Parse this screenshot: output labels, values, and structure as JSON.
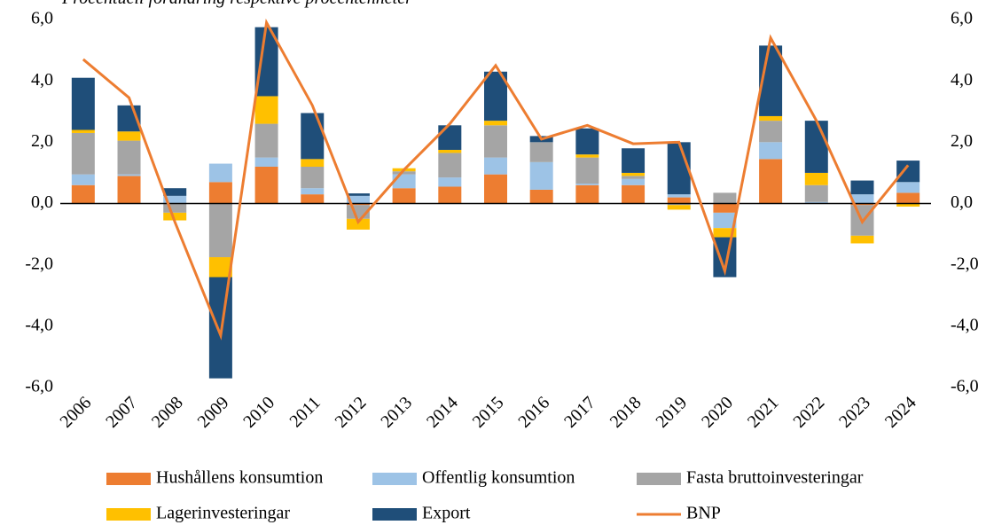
{
  "chart_data": {
    "type": "bar",
    "title": "Procentuell förändring respektive procentenheter",
    "categories": [
      "2006",
      "2007",
      "2008",
      "2009",
      "2010",
      "2011",
      "2012",
      "2013",
      "2014",
      "2015",
      "2016",
      "2017",
      "2018",
      "2019",
      "2020",
      "2021",
      "2022",
      "2023",
      "2024"
    ],
    "stacked": true,
    "series": [
      {
        "name": "Hushållens konsumtion",
        "color": "#ed7d31",
        "values": [
          0.6,
          0.9,
          0.0,
          0.7,
          1.2,
          0.3,
          -0.05,
          0.5,
          0.55,
          0.95,
          0.45,
          0.6,
          0.6,
          0.2,
          -0.3,
          1.45,
          0.0,
          -0.05,
          0.35
        ]
      },
      {
        "name": "Offentlig konsumtion",
        "color": "#9dc3e6",
        "values": [
          0.35,
          0.05,
          0.25,
          0.6,
          0.3,
          0.2,
          0.25,
          0.45,
          0.3,
          0.55,
          0.9,
          0.05,
          0.2,
          0.1,
          -0.5,
          0.55,
          0.05,
          0.3,
          0.35
        ]
      },
      {
        "name": "Fasta bruttoinvesteringar",
        "color": "#a5a5a5",
        "values": [
          1.35,
          1.1,
          -0.3,
          -1.75,
          1.1,
          0.7,
          -0.45,
          0.1,
          0.8,
          1.05,
          0.65,
          0.85,
          0.1,
          -0.05,
          0.35,
          0.7,
          0.55,
          -1.0,
          0.0
        ]
      },
      {
        "name": "Lagerinvesteringar",
        "color": "#ffc000",
        "values": [
          0.1,
          0.3,
          -0.25,
          -0.65,
          0.9,
          0.25,
          -0.35,
          0.1,
          0.1,
          0.15,
          0.0,
          0.1,
          0.1,
          -0.15,
          -0.3,
          0.15,
          0.4,
          -0.25,
          -0.1
        ]
      },
      {
        "name": "Export",
        "color": "#1f4e79",
        "values": [
          1.7,
          0.85,
          0.25,
          -3.3,
          2.25,
          1.5,
          0.08,
          0.0,
          0.8,
          1.6,
          0.2,
          0.85,
          0.8,
          1.7,
          -1.3,
          2.3,
          1.7,
          0.45,
          0.7
        ]
      },
      {
        "name": "BNP",
        "color": "#ed7d31",
        "type": "line",
        "values": [
          4.7,
          3.45,
          -0.6,
          -4.3,
          5.9,
          3.2,
          -0.6,
          1.1,
          2.6,
          4.5,
          2.1,
          2.55,
          1.95,
          2.0,
          -2.2,
          5.4,
          2.7,
          -0.6,
          1.25
        ]
      }
    ],
    "ylim": [
      -6,
      6
    ],
    "yticks": [
      {
        "value": -6,
        "label": "-6,0"
      },
      {
        "value": -4,
        "label": "-4,0"
      },
      {
        "value": -2,
        "label": "-2,0"
      },
      {
        "value": 0,
        "label": "0,0"
      },
      {
        "value": 2,
        "label": "2,0"
      },
      {
        "value": 4,
        "label": "4,0"
      },
      {
        "value": 6,
        "label": "6,0"
      }
    ],
    "y2lim": [
      -6,
      6
    ],
    "y2ticks": [
      {
        "value": -6,
        "label": "-6,0"
      },
      {
        "value": -4,
        "label": "-4,0"
      },
      {
        "value": -2,
        "label": "-2,0"
      },
      {
        "value": 0,
        "label": "0,0"
      },
      {
        "value": 2,
        "label": "2,0"
      },
      {
        "value": 4,
        "label": "4,0"
      },
      {
        "value": 6,
        "label": "6,0"
      }
    ],
    "grid": false
  }
}
